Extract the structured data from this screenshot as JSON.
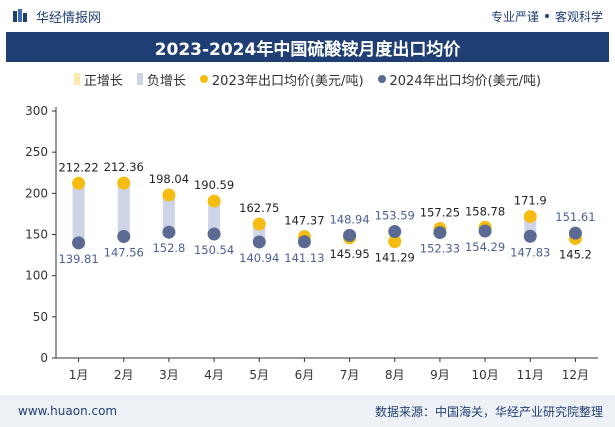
{
  "header": {
    "brand": "华经情报网",
    "tagline_left": "专业严谨",
    "tagline_right": "客观科学"
  },
  "title": "2023-2024年中国硫酸铵月度出口均价",
  "legend": {
    "positive": "正增长",
    "negative": "负增长",
    "series_2023": "2023年出口均价(美元/吨)",
    "series_2024": "2024年出口均价(美元/吨)"
  },
  "colors": {
    "header_bg": "#1f3f74",
    "positive": "#fde9a9",
    "negative": "#cfd5e6",
    "series_2023": "#f5bd12",
    "series_2024": "#5a6a93",
    "label_2023": "#222222",
    "label_2024": "#4a5f94"
  },
  "footer": {
    "site": "www.huaon.com",
    "source": "数据来源：中国海关，华经产业研究院整理"
  },
  "chart_data": {
    "type": "scatter",
    "categories": [
      "1月",
      "2月",
      "3月",
      "4月",
      "5月",
      "6月",
      "7月",
      "8月",
      "9月",
      "10月",
      "11月",
      "12月"
    ],
    "series": [
      {
        "name": "2023年出口均价(美元/吨)",
        "values": [
          212.22,
          212.36,
          198.04,
          190.59,
          162.75,
          147.37,
          145.95,
          141.29,
          157.25,
          158.78,
          171.9,
          145.2
        ]
      },
      {
        "name": "2024年出口均价(美元/吨)",
        "values": [
          139.81,
          147.56,
          152.8,
          150.54,
          140.94,
          141.13,
          148.94,
          153.59,
          152.33,
          154.29,
          147.83,
          151.61
        ]
      }
    ],
    "ylim": [
      0,
      300
    ],
    "yticks": [
      0,
      50,
      100,
      150,
      200,
      250,
      300
    ],
    "grid": false,
    "legend_position": "top-center"
  }
}
